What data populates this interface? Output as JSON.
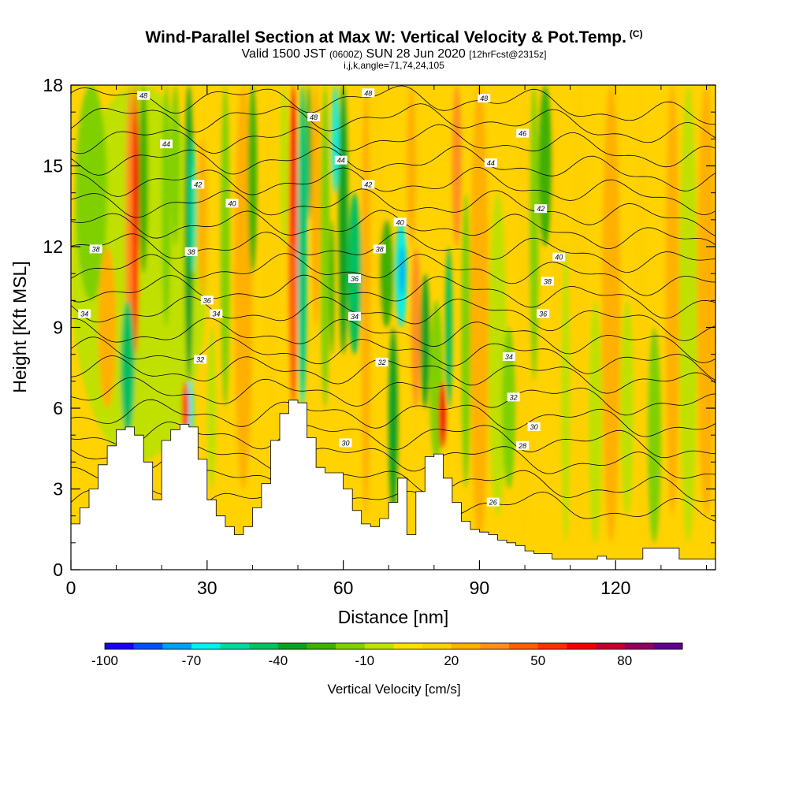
{
  "header": {
    "title": "Wind-Parallel Section at Max W: Vertical Velocity & Pot.Temp.",
    "title_mark": "(C)",
    "valid_prefix": "Valid 1500 JST",
    "valid_utc": "(0600Z)",
    "valid_date": "SUN 28 Jun 2020",
    "forecast": "[12hrFcst@2315z]",
    "indices": "i,j,k,angle=71,74,24,105"
  },
  "chart_data": {
    "type": "heatmap",
    "xlabel": "Distance [nm]",
    "ylabel": "Height [Kft MSL]",
    "xlim": [
      0,
      142
    ],
    "ylim": [
      0,
      18
    ],
    "x_ticks": [
      "0",
      "30",
      "60",
      "90",
      "120"
    ],
    "y_ticks": [
      "0",
      "3",
      "6",
      "9",
      "12",
      "15",
      "18"
    ],
    "colorbar": {
      "label": "Vertical Velocity [cm/s]",
      "ticks": [
        "-100",
        "-70",
        "-40",
        "-10",
        "20",
        "50",
        "80"
      ],
      "levels": [
        -100,
        -90,
        -80,
        -70,
        -60,
        -50,
        -40,
        -30,
        -20,
        -10,
        0,
        10,
        20,
        30,
        40,
        50,
        60,
        70,
        80,
        90
      ],
      "colors": [
        "#1a00f0",
        "#0050f0",
        "#00a0f0",
        "#00f0f0",
        "#00d8a0",
        "#00c060",
        "#10a020",
        "#40b000",
        "#80d000",
        "#c0e000",
        "#ffe000",
        "#ffd000",
        "#ffb000",
        "#ff9020",
        "#ff6000",
        "#ff3000",
        "#f00000",
        "#c00030",
        "#900060",
        "#600090"
      ]
    },
    "terrain_profile": {
      "x": [
        0,
        2,
        4,
        6,
        8,
        10,
        12,
        14,
        16,
        18,
        20,
        22,
        24,
        26,
        28,
        30,
        32,
        34,
        36,
        38,
        40,
        42,
        44,
        46,
        48,
        50,
        52,
        54,
        56,
        58,
        60,
        62,
        64,
        66,
        68,
        70,
        72,
        74,
        76,
        78,
        80,
        82,
        84,
        86,
        88,
        90,
        92,
        94,
        96,
        98,
        100,
        102,
        104,
        106,
        108,
        110,
        112,
        114,
        116,
        118,
        120,
        122,
        124,
        126,
        128,
        130,
        132,
        134,
        136,
        138,
        140,
        142
      ],
      "height_kft": [
        1.7,
        2.3,
        3.0,
        3.9,
        4.6,
        5.2,
        5.3,
        5.0,
        4.0,
        2.6,
        4.8,
        5.2,
        5.4,
        5.3,
        4.1,
        2.6,
        2.0,
        1.6,
        1.3,
        1.6,
        2.3,
        3.2,
        4.8,
        5.8,
        6.3,
        6.2,
        4.9,
        3.8,
        3.6,
        3.6,
        3.0,
        2.2,
        1.7,
        1.6,
        1.9,
        2.5,
        3.4,
        1.3,
        2.9,
        4.2,
        4.3,
        3.4,
        2.5,
        1.8,
        1.5,
        1.4,
        1.3,
        1.1,
        1.0,
        0.9,
        0.7,
        0.6,
        0.6,
        0.4,
        0.4,
        0.4,
        0.4,
        0.4,
        0.5,
        0.4,
        0.4,
        0.4,
        0.4,
        0.8,
        0.8,
        0.8,
        0.8,
        0.4,
        0.4,
        0.4,
        0.4,
        1.3
      ]
    },
    "potential_temperature_labels": [
      {
        "value": "48",
        "x": 16,
        "y": 17.6
      },
      {
        "value": "44",
        "x": 21,
        "y": 15.8
      },
      {
        "value": "42",
        "x": 28,
        "y": 14.3
      },
      {
        "value": "40",
        "x": 35.5,
        "y": 13.6
      },
      {
        "value": "38",
        "x": 5.5,
        "y": 11.9
      },
      {
        "value": "38",
        "x": 26.5,
        "y": 11.8
      },
      {
        "value": "36",
        "x": 30,
        "y": 10.0
      },
      {
        "value": "34",
        "x": 3,
        "y": 9.5
      },
      {
        "value": "34",
        "x": 32,
        "y": 9.5
      },
      {
        "value": "32",
        "x": 28.5,
        "y": 7.8
      },
      {
        "value": "48",
        "x": 53.5,
        "y": 16.8
      },
      {
        "value": "44",
        "x": 59.5,
        "y": 15.2
      },
      {
        "value": "42",
        "x": 65.5,
        "y": 14.3
      },
      {
        "value": "48",
        "x": 65.5,
        "y": 17.7
      },
      {
        "value": "40",
        "x": 72.5,
        "y": 12.9
      },
      {
        "value": "38",
        "x": 68,
        "y": 11.9
      },
      {
        "value": "36",
        "x": 62.5,
        "y": 10.8
      },
      {
        "value": "34",
        "x": 62.5,
        "y": 9.4
      },
      {
        "value": "32",
        "x": 68.5,
        "y": 7.7
      },
      {
        "value": "30",
        "x": 60.5,
        "y": 4.7
      },
      {
        "value": "48",
        "x": 91,
        "y": 17.5
      },
      {
        "value": "46",
        "x": 99.5,
        "y": 16.2
      },
      {
        "value": "44",
        "x": 92.5,
        "y": 15.1
      },
      {
        "value": "42",
        "x": 103.5,
        "y": 13.4
      },
      {
        "value": "40",
        "x": 107.5,
        "y": 11.6
      },
      {
        "value": "38",
        "x": 105,
        "y": 10.7
      },
      {
        "value": "36",
        "x": 104,
        "y": 9.5
      },
      {
        "value": "34",
        "x": 96.5,
        "y": 7.9
      },
      {
        "value": "32",
        "x": 97.5,
        "y": 6.4
      },
      {
        "value": "30",
        "x": 102,
        "y": 5.3
      },
      {
        "value": "28",
        "x": 99.5,
        "y": 4.6
      },
      {
        "value": "26",
        "x": 93,
        "y": 2.5
      }
    ]
  }
}
